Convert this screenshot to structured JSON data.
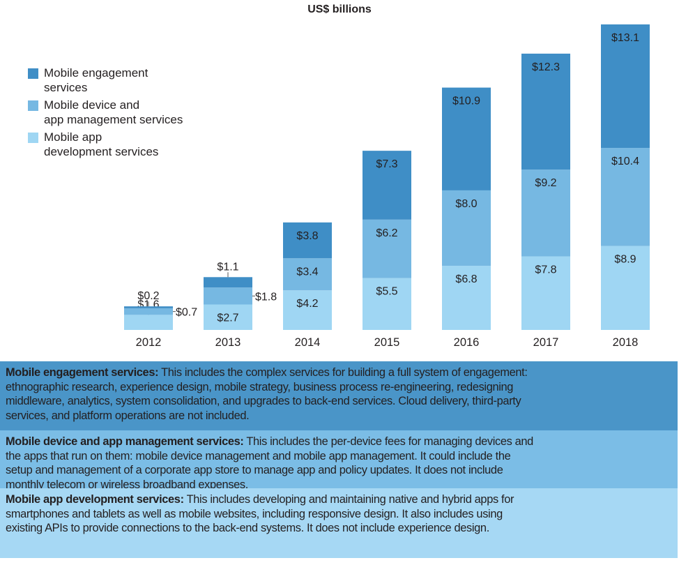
{
  "chart_data": {
    "type": "bar",
    "stacked": true,
    "title": "US$ billions",
    "categories": [
      "2012",
      "2013",
      "2014",
      "2015",
      "2016",
      "2017",
      "2018"
    ],
    "series": [
      {
        "name": "Mobile app development services",
        "color": "#9fd6f3",
        "values": [
          1.6,
          2.7,
          4.2,
          5.5,
          6.8,
          7.8,
          8.9
        ],
        "labels": [
          "$1.6",
          "$2.7",
          "$4.2",
          "$5.5",
          "$6.8",
          "$7.8",
          "$8.9"
        ]
      },
      {
        "name": "Mobile device and app management services",
        "color": "#76b8e2",
        "values": [
          0.7,
          1.8,
          3.4,
          6.2,
          8.0,
          9.2,
          10.4
        ],
        "labels": [
          "$0.7",
          "$1.8",
          "$3.4",
          "$6.2",
          "$8.0",
          "$9.2",
          "$10.4"
        ]
      },
      {
        "name": "Mobile engagement services",
        "color": "#3f8ec6",
        "values": [
          0.2,
          1.1,
          3.8,
          7.3,
          10.9,
          12.3,
          13.1
        ],
        "labels": [
          "$0.2",
          "$1.1",
          "$3.8",
          "$7.3",
          "$10.9",
          "$12.3",
          "$13.1"
        ]
      }
    ],
    "ylim": [
      0,
      32.4
    ],
    "grid": false,
    "legend_position": "top-left",
    "legend": [
      {
        "lines": [
          "Mobile engagement",
          "services"
        ],
        "color": "#3f8ec6"
      },
      {
        "lines": [
          "Mobile device and",
          "app management services"
        ],
        "color": "#76b8e2"
      },
      {
        "lines": [
          "Mobile app",
          "development services"
        ],
        "color": "#9fd6f3"
      }
    ]
  },
  "definitions": [
    {
      "term": "Mobile engagement services:",
      "bg": "#4a95c8",
      "lines": [
        " This includes the complex services for building a full system of engagement:",
        "ethnographic research, experience design, mobile strategy, business process re-engineering, redesigning",
        "middleware, analytics, system consolidation, and upgrades to back-end services. Cloud delivery, third-party",
        "services, and platform operations are not included."
      ]
    },
    {
      "term": "Mobile device and app management services:",
      "bg": "#7bbde6",
      "lines": [
        " This includes the per-device fees for managing devices and",
        "the apps that run on them: mobile device management and mobile app management. It could include the",
        "setup and management of a corporate app store to manage app and policy updates. It does not include",
        "monthly telecom or wireless broadband expenses."
      ]
    },
    {
      "term": "Mobile app development services:",
      "bg": "#a6d8f4",
      "lines": [
        " This includes developing and maintaining native and hybrid apps for",
        "smartphones and tablets as well as mobile websites, including responsive design. It also includes using",
        "existing APIs to provide connections to the back-end systems. It does not include experience design."
      ]
    }
  ]
}
